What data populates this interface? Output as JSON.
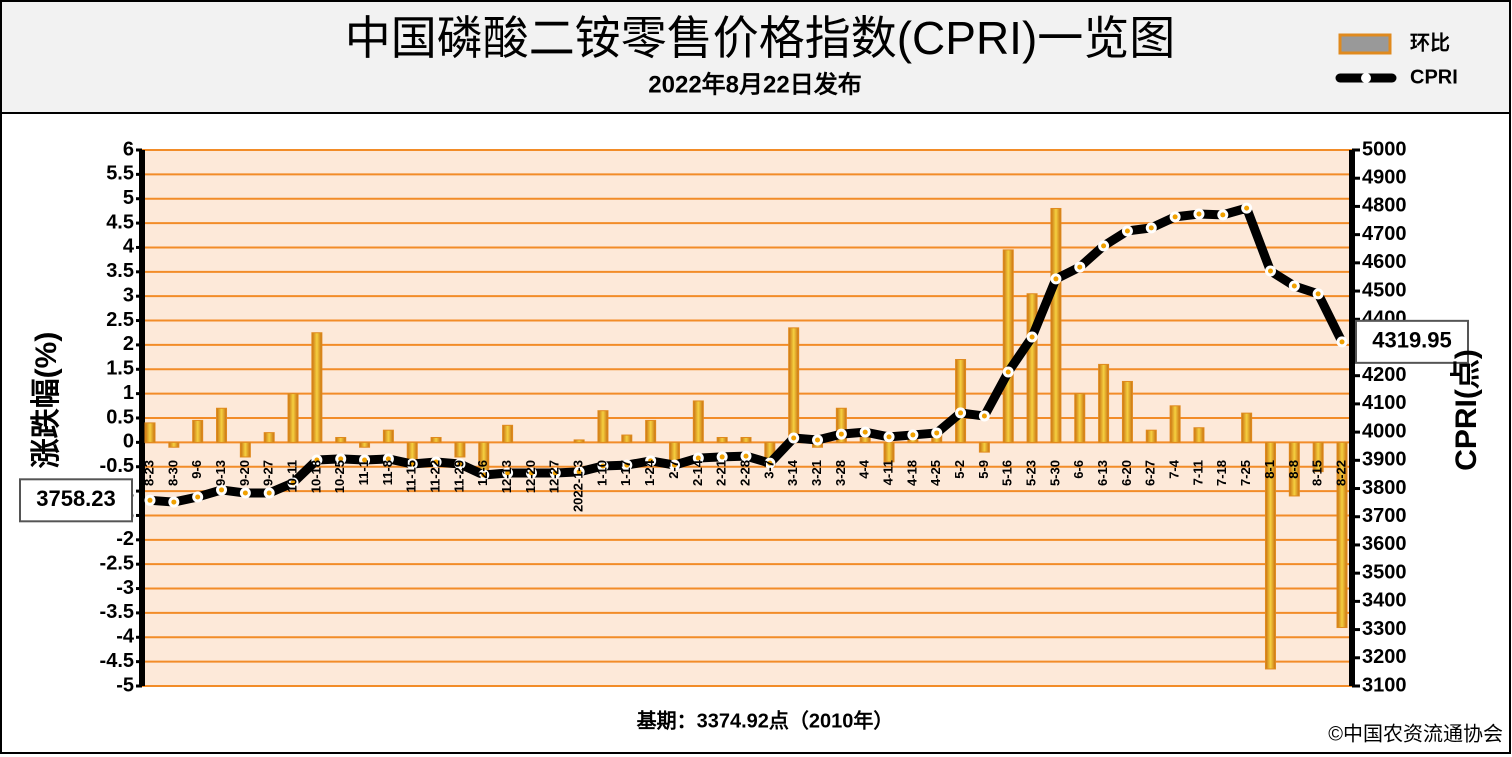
{
  "chart_data": {
    "type": "bar-line",
    "title": "中国磷酸二铵零售价格指数(CPRI)一览图",
    "subtitle": "2022年8月22日发布",
    "y_label": "涨跌幅(%)",
    "y2_label": "CPRI(点)",
    "footnote": "基期：3374.92点（2010年）",
    "source": "©中国农资流通协会",
    "categories": [
      "8-23",
      "8-30",
      "9-6",
      "9-13",
      "9-20",
      "9-27",
      "10-11",
      "10-18",
      "10-25",
      "11-1",
      "11-8",
      "11-15",
      "11-22",
      "11-29",
      "12-6",
      "12-13",
      "12-20",
      "12-27",
      "2022-1-3",
      "1-10",
      "1-17",
      "1-24",
      "2-7",
      "2-14",
      "2-21",
      "2-28",
      "3-7",
      "3-14",
      "3-21",
      "3-28",
      "4-4",
      "4-11",
      "4-18",
      "4-25",
      "5-2",
      "5-9",
      "5-16",
      "5-23",
      "5-30",
      "6-6",
      "6-13",
      "6-20",
      "6-27",
      "7-4",
      "7-11",
      "7-18",
      "7-25",
      "8-1",
      "8-8",
      "8-15",
      "8-22"
    ],
    "series": [
      {
        "name": "环比",
        "type": "bar",
        "color": "#e08a1e",
        "values": [
          0.4,
          -0.1,
          0.45,
          0.7,
          -0.3,
          0.2,
          1.0,
          2.25,
          0.1,
          -0.1,
          0.25,
          -0.5,
          0.1,
          -0.3,
          -0.7,
          0.35,
          0,
          0,
          0.05,
          0.65,
          0.15,
          0.45,
          -0.4,
          0.85,
          0.1,
          0.1,
          -0.5,
          2.35,
          -0.1,
          0.7,
          0.1,
          -0.4,
          0.15,
          0.2,
          1.7,
          -0.2,
          3.95,
          3.05,
          4.8,
          1.0,
          1.6,
          1.25,
          0.25,
          0.75,
          0.3,
          0,
          0.6,
          -4.65,
          -1.1,
          -0.6,
          -3.8
        ]
      },
      {
        "name": "CPRI",
        "type": "line",
        "axis": "y2",
        "color": "#000000",
        "values": [
          3758.23,
          3752,
          3770,
          3795,
          3784,
          3784,
          3820,
          3901,
          3905,
          3901,
          3905,
          3887,
          3894,
          3887,
          3848,
          3855,
          3855,
          3855,
          3859,
          3880,
          3883,
          3898,
          3883,
          3908,
          3912,
          3915,
          3890,
          3979,
          3972,
          3993,
          4000,
          3983,
          3990,
          3997,
          4068,
          4057,
          4213,
          4337,
          4543,
          4585,
          4660,
          4713,
          4724,
          4763,
          4773,
          4770,
          4794,
          4571,
          4518,
          4490,
          4319.95
        ]
      }
    ],
    "ylim": [
      -5,
      6
    ],
    "yticks": [
      -5,
      -4.5,
      -4,
      -3.5,
      -3,
      -2.5,
      -2,
      -1.5,
      -1,
      -0.5,
      0,
      0.5,
      1,
      1.5,
      2,
      2.5,
      3,
      3.5,
      4,
      4.5,
      5,
      5.5,
      6
    ],
    "y2lim": [
      3100,
      5000
    ],
    "y2ticks": [
      3100,
      3200,
      3300,
      3400,
      3500,
      3600,
      3700,
      3800,
      3900,
      4000,
      4100,
      4200,
      4300,
      4400,
      4500,
      4600,
      4700,
      4800,
      4900,
      5000
    ],
    "grid": true,
    "legend": "top-right"
  }
}
